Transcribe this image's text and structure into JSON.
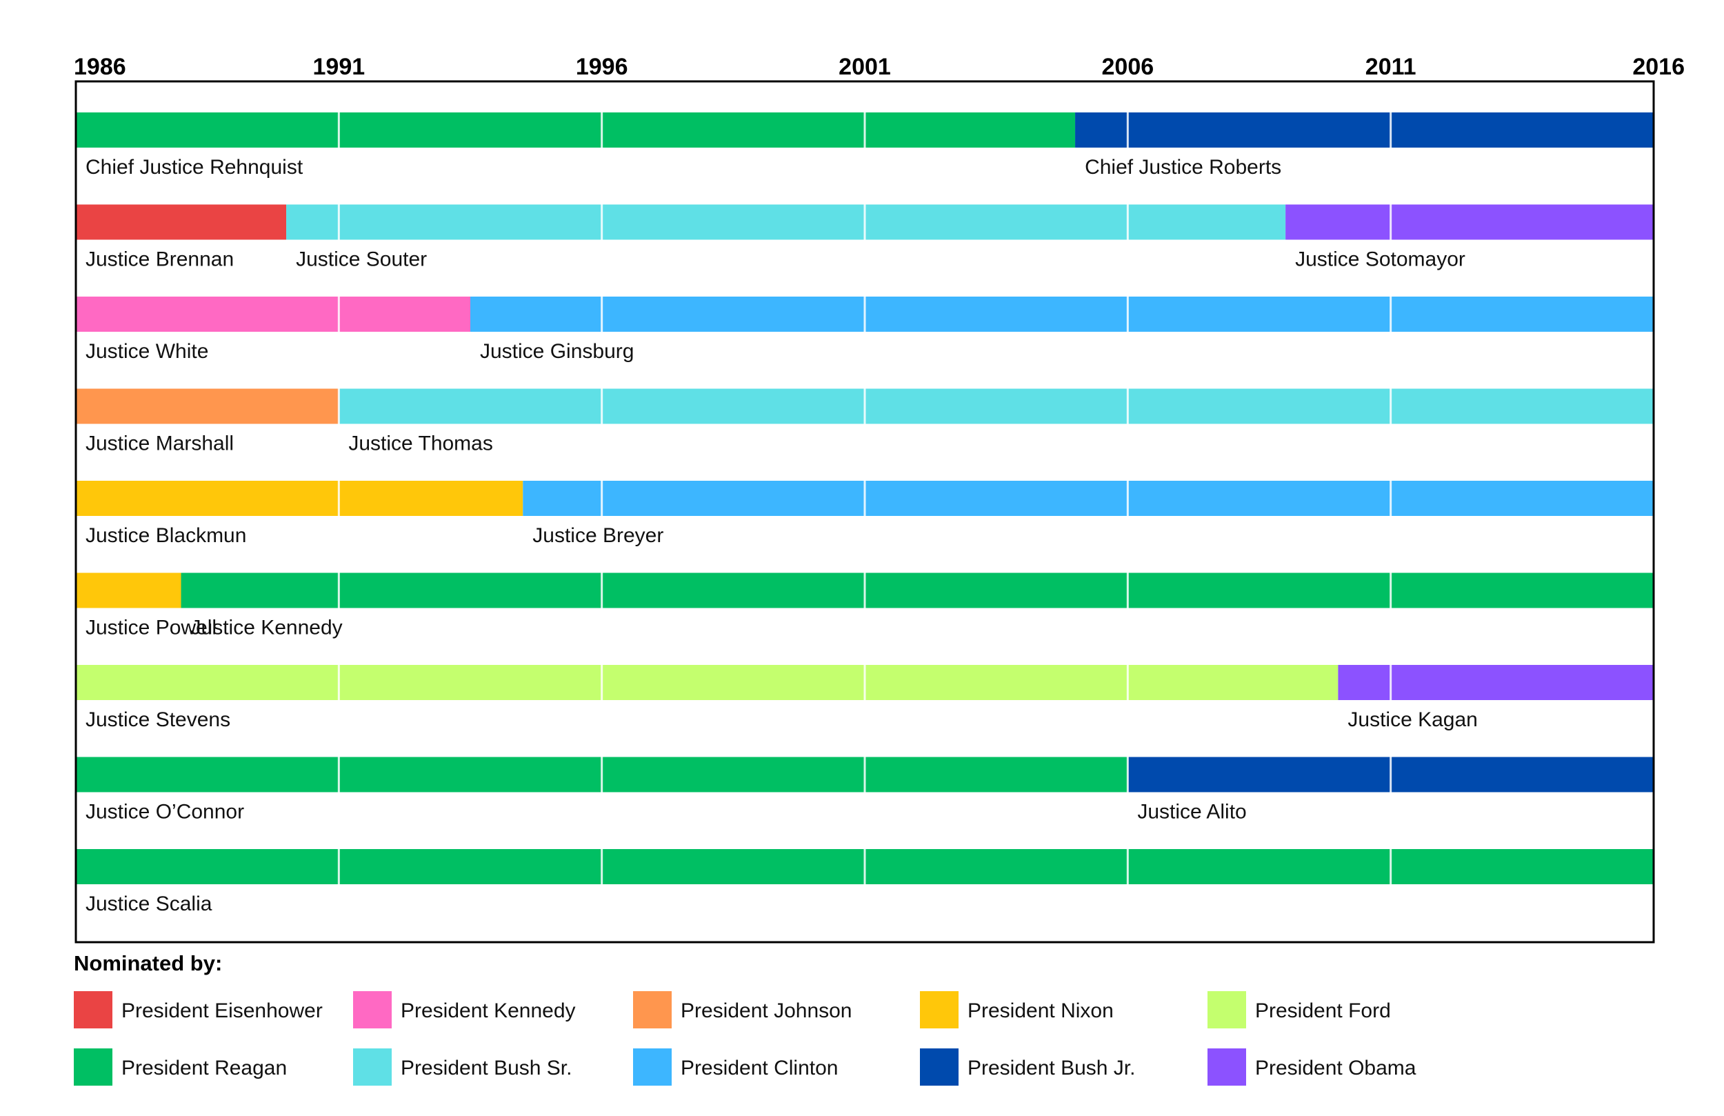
{
  "chart_data": {
    "type": "timeline-bar",
    "title": "",
    "x_axis": {
      "min": 1986,
      "max": 2016,
      "ticks": [
        "1986",
        "1991",
        "1996",
        "2001",
        "2006",
        "2011",
        "2016"
      ],
      "grid": true
    },
    "seats": [
      {
        "segments": [
          {
            "name": "Chief Justice Rehnquist",
            "start": 1986,
            "end": 2005.0,
            "nominated_by": "President Reagan"
          },
          {
            "name": "Chief Justice Roberts",
            "start": 2005.0,
            "end": 2016,
            "nominated_by": "President Bush Jr."
          }
        ]
      },
      {
        "segments": [
          {
            "name": "Justice Brennan",
            "start": 1986,
            "end": 1990.0,
            "nominated_by": "President Eisenhower"
          },
          {
            "name": "Justice Souter",
            "start": 1990.0,
            "end": 2009.0,
            "nominated_by": "President Bush Sr."
          },
          {
            "name": "Justice Sotomayor",
            "start": 2009.0,
            "end": 2016,
            "nominated_by": "President Obama"
          }
        ]
      },
      {
        "segments": [
          {
            "name": "Justice White",
            "start": 1986,
            "end": 1993.5,
            "nominated_by": "President Kennedy"
          },
          {
            "name": "Justice Ginsburg",
            "start": 1993.5,
            "end": 2016,
            "nominated_by": "President Clinton"
          }
        ]
      },
      {
        "segments": [
          {
            "name": "Justice Marshall",
            "start": 1986,
            "end": 1991.0,
            "nominated_by": "President Johnson"
          },
          {
            "name": "Justice Thomas",
            "start": 1991.0,
            "end": 2016,
            "nominated_by": "President Bush Sr."
          }
        ]
      },
      {
        "segments": [
          {
            "name": "Justice Blackmun",
            "start": 1986,
            "end": 1994.5,
            "nominated_by": "President Nixon"
          },
          {
            "name": "Justice Breyer",
            "start": 1994.5,
            "end": 2016,
            "nominated_by": "President Clinton"
          }
        ]
      },
      {
        "segments": [
          {
            "name": "Justice Powell",
            "start": 1986,
            "end": 1988.0,
            "nominated_by": "President Nixon"
          },
          {
            "name": "Justice Kennedy",
            "start": 1988.0,
            "end": 2016,
            "nominated_by": "President Reagan"
          }
        ]
      },
      {
        "segments": [
          {
            "name": "Justice Stevens",
            "start": 1986,
            "end": 2010.0,
            "nominated_by": "President Ford"
          },
          {
            "name": "Justice Kagan",
            "start": 2010.0,
            "end": 2016,
            "nominated_by": "President Obama"
          }
        ]
      },
      {
        "segments": [
          {
            "name": "Justice O’Connor",
            "start": 1986,
            "end": 2006.0,
            "nominated_by": "President Reagan"
          },
          {
            "name": "Justice Alito",
            "start": 2006.0,
            "end": 2016,
            "nominated_by": "President Bush Jr."
          }
        ]
      },
      {
        "segments": [
          {
            "name": "Justice Scalia",
            "start": 1986,
            "end": 2016,
            "nominated_by": "President Reagan"
          }
        ]
      }
    ],
    "legend": {
      "title": "Nominated by:",
      "placement": "bottom",
      "items": [
        {
          "label": "President Eisenhower",
          "color": "#EA4444"
        },
        {
          "label": "President Kennedy",
          "color": "#FF69C3"
        },
        {
          "label": "President Johnson",
          "color": "#FF964E"
        },
        {
          "label": "President Nixon",
          "color": "#FFC70A"
        },
        {
          "label": "President Ford",
          "color": "#C4FF6E"
        },
        {
          "label": "President Reagan",
          "color": "#00BF63"
        },
        {
          "label": "President Bush Sr.",
          "color": "#5FE0E6"
        },
        {
          "label": "President Clinton",
          "color": "#3DB6FF"
        },
        {
          "label": "President Bush Jr.",
          "color": "#004AAD"
        },
        {
          "label": "President Obama",
          "color": "#8C52FF"
        }
      ]
    }
  }
}
